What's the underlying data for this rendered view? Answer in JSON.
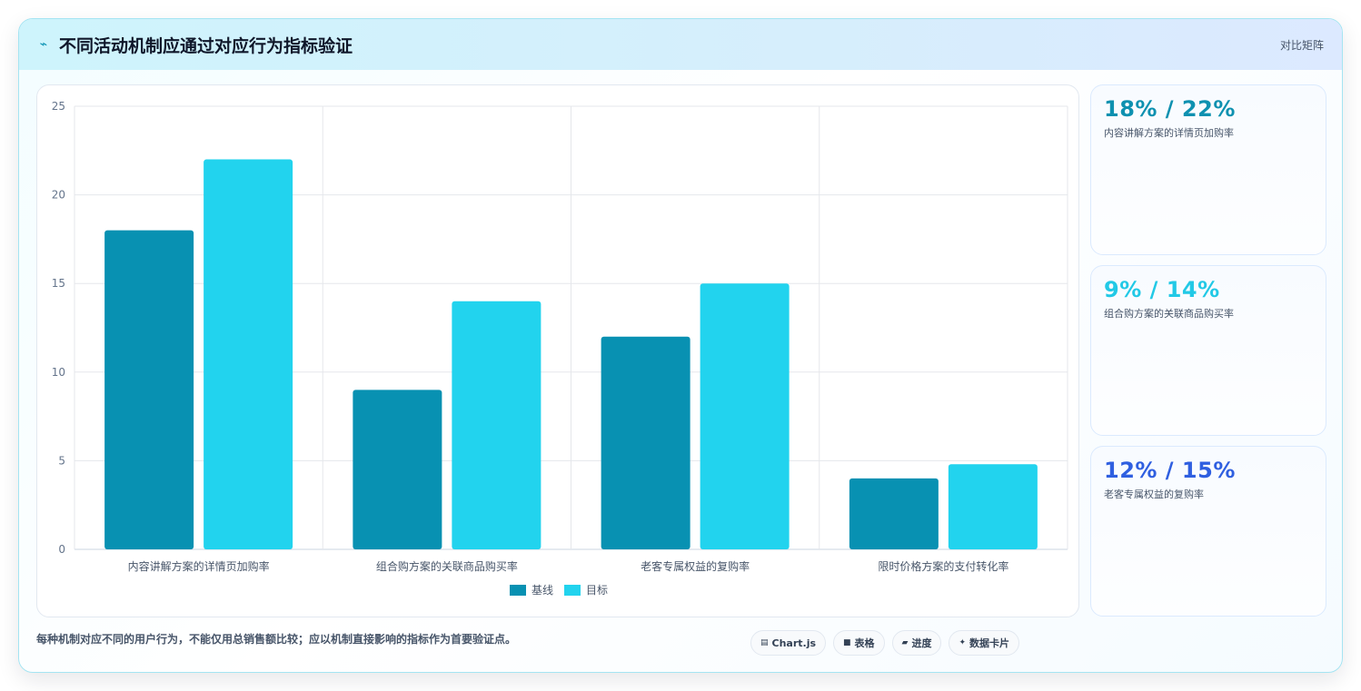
{
  "header": {
    "icon": "lightning-icon",
    "title": "不同活动机制应通过对应行为指标验证",
    "tag": "对比矩阵"
  },
  "chart_data": {
    "type": "bar",
    "title": "",
    "xlabel": "",
    "ylabel": "",
    "categories": [
      "内容讲解方案的详情页加购率",
      "组合购方案的关联商品购买率",
      "老客专属权益的复购率",
      "限时价格方案的支付转化率"
    ],
    "series": [
      {
        "name": "基线",
        "color": "#0891b2",
        "values": [
          18,
          9,
          12,
          4
        ]
      },
      {
        "name": "目标",
        "color": "#22d3ee",
        "values": [
          22,
          14,
          15,
          4.8
        ]
      }
    ],
    "ylim": [
      0,
      25
    ],
    "yticks": [
      0,
      5,
      10,
      15,
      20,
      25
    ],
    "grid": true,
    "legend": "bottom-center"
  },
  "stats": [
    {
      "value": "18% / 22%",
      "label": "内容讲解方案的详情页加购率",
      "color": "#0e91b0"
    },
    {
      "value": "9% / 14%",
      "label": "组合购方案的关联商品购买率",
      "color": "#22c9e6"
    },
    {
      "value": "12% / 15%",
      "label": "老客专属权益的复购率",
      "color": "#2f5fe0"
    }
  ],
  "footer": {
    "note": "每种机制对应不同的用户行为，不能仅用总销售额比较；应以机制直接影响的指标作为首要验证点。",
    "pills": [
      {
        "icon": "chart-icon",
        "glyph": "▤",
        "label": "Chart.js"
      },
      {
        "icon": "table-icon",
        "glyph": "■",
        "label": "表格"
      },
      {
        "icon": "progress-icon",
        "glyph": "▰",
        "label": "进度"
      },
      {
        "icon": "datacard-icon",
        "glyph": "✦",
        "label": "数据卡片"
      }
    ]
  }
}
